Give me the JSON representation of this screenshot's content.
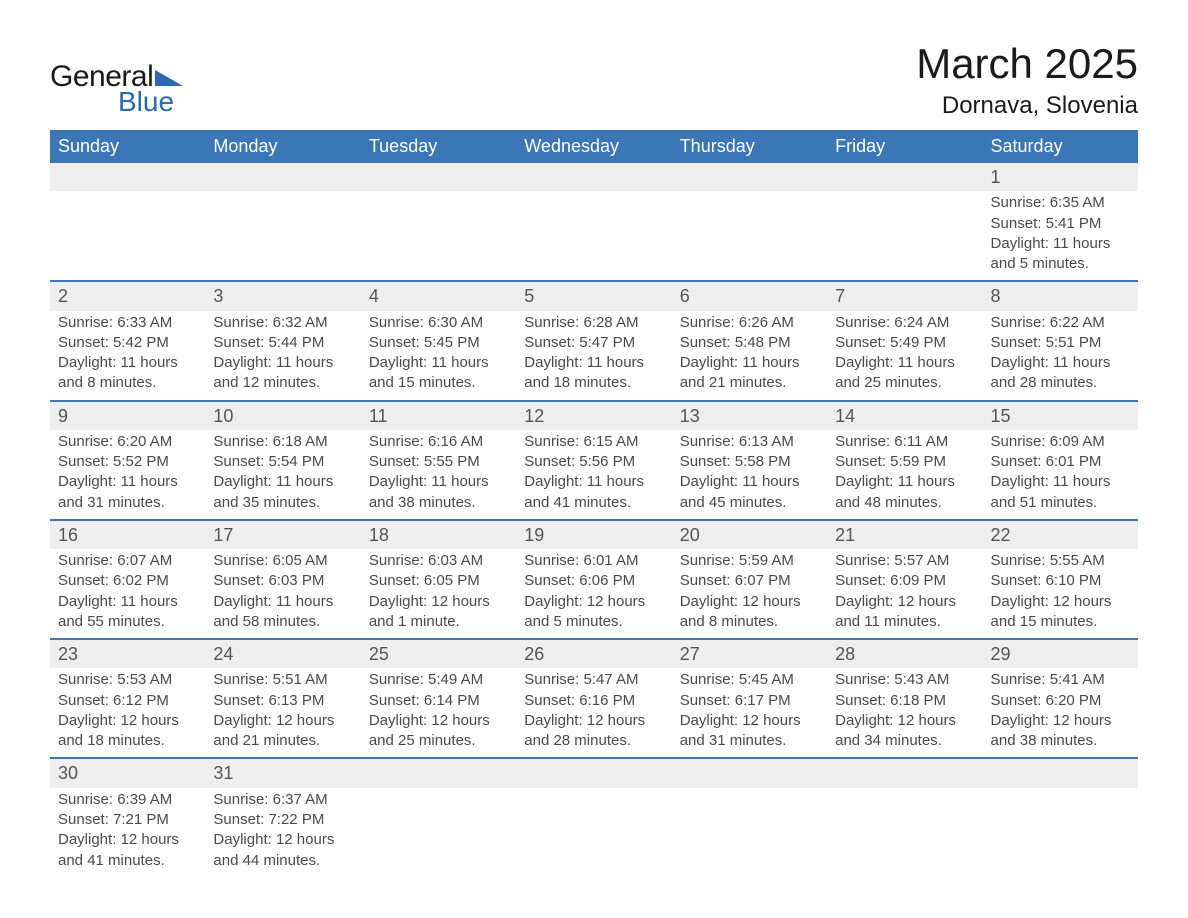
{
  "logo": {
    "line1": "General",
    "line2": "Blue"
  },
  "title": {
    "month_year": "March 2025",
    "location": "Dornava, Slovenia"
  },
  "colors": {
    "header_bg": "#3b76b6",
    "header_text": "#ffffff",
    "daynum_bg": "#eeeeee",
    "row_border": "#3b76b6",
    "text": "#4a4a4a",
    "logo_accent": "#2a6ab0"
  },
  "weekdays": [
    "Sunday",
    "Monday",
    "Tuesday",
    "Wednesday",
    "Thursday",
    "Friday",
    "Saturday"
  ],
  "labels": {
    "sunrise": "Sunrise",
    "sunset": "Sunset",
    "daylight": "Daylight"
  },
  "weeks": [
    [
      null,
      null,
      null,
      null,
      null,
      null,
      {
        "day": "1",
        "sunrise": "6:35 AM",
        "sunset": "5:41 PM",
        "daylight": "11 hours and 5 minutes."
      }
    ],
    [
      {
        "day": "2",
        "sunrise": "6:33 AM",
        "sunset": "5:42 PM",
        "daylight": "11 hours and 8 minutes."
      },
      {
        "day": "3",
        "sunrise": "6:32 AM",
        "sunset": "5:44 PM",
        "daylight": "11 hours and 12 minutes."
      },
      {
        "day": "4",
        "sunrise": "6:30 AM",
        "sunset": "5:45 PM",
        "daylight": "11 hours and 15 minutes."
      },
      {
        "day": "5",
        "sunrise": "6:28 AM",
        "sunset": "5:47 PM",
        "daylight": "11 hours and 18 minutes."
      },
      {
        "day": "6",
        "sunrise": "6:26 AM",
        "sunset": "5:48 PM",
        "daylight": "11 hours and 21 minutes."
      },
      {
        "day": "7",
        "sunrise": "6:24 AM",
        "sunset": "5:49 PM",
        "daylight": "11 hours and 25 minutes."
      },
      {
        "day": "8",
        "sunrise": "6:22 AM",
        "sunset": "5:51 PM",
        "daylight": "11 hours and 28 minutes."
      }
    ],
    [
      {
        "day": "9",
        "sunrise": "6:20 AM",
        "sunset": "5:52 PM",
        "daylight": "11 hours and 31 minutes."
      },
      {
        "day": "10",
        "sunrise": "6:18 AM",
        "sunset": "5:54 PM",
        "daylight": "11 hours and 35 minutes."
      },
      {
        "day": "11",
        "sunrise": "6:16 AM",
        "sunset": "5:55 PM",
        "daylight": "11 hours and 38 minutes."
      },
      {
        "day": "12",
        "sunrise": "6:15 AM",
        "sunset": "5:56 PM",
        "daylight": "11 hours and 41 minutes."
      },
      {
        "day": "13",
        "sunrise": "6:13 AM",
        "sunset": "5:58 PM",
        "daylight": "11 hours and 45 minutes."
      },
      {
        "day": "14",
        "sunrise": "6:11 AM",
        "sunset": "5:59 PM",
        "daylight": "11 hours and 48 minutes."
      },
      {
        "day": "15",
        "sunrise": "6:09 AM",
        "sunset": "6:01 PM",
        "daylight": "11 hours and 51 minutes."
      }
    ],
    [
      {
        "day": "16",
        "sunrise": "6:07 AM",
        "sunset": "6:02 PM",
        "daylight": "11 hours and 55 minutes."
      },
      {
        "day": "17",
        "sunrise": "6:05 AM",
        "sunset": "6:03 PM",
        "daylight": "11 hours and 58 minutes."
      },
      {
        "day": "18",
        "sunrise": "6:03 AM",
        "sunset": "6:05 PM",
        "daylight": "12 hours and 1 minute."
      },
      {
        "day": "19",
        "sunrise": "6:01 AM",
        "sunset": "6:06 PM",
        "daylight": "12 hours and 5 minutes."
      },
      {
        "day": "20",
        "sunrise": "5:59 AM",
        "sunset": "6:07 PM",
        "daylight": "12 hours and 8 minutes."
      },
      {
        "day": "21",
        "sunrise": "5:57 AM",
        "sunset": "6:09 PM",
        "daylight": "12 hours and 11 minutes."
      },
      {
        "day": "22",
        "sunrise": "5:55 AM",
        "sunset": "6:10 PM",
        "daylight": "12 hours and 15 minutes."
      }
    ],
    [
      {
        "day": "23",
        "sunrise": "5:53 AM",
        "sunset": "6:12 PM",
        "daylight": "12 hours and 18 minutes."
      },
      {
        "day": "24",
        "sunrise": "5:51 AM",
        "sunset": "6:13 PM",
        "daylight": "12 hours and 21 minutes."
      },
      {
        "day": "25",
        "sunrise": "5:49 AM",
        "sunset": "6:14 PM",
        "daylight": "12 hours and 25 minutes."
      },
      {
        "day": "26",
        "sunrise": "5:47 AM",
        "sunset": "6:16 PM",
        "daylight": "12 hours and 28 minutes."
      },
      {
        "day": "27",
        "sunrise": "5:45 AM",
        "sunset": "6:17 PM",
        "daylight": "12 hours and 31 minutes."
      },
      {
        "day": "28",
        "sunrise": "5:43 AM",
        "sunset": "6:18 PM",
        "daylight": "12 hours and 34 minutes."
      },
      {
        "day": "29",
        "sunrise": "5:41 AM",
        "sunset": "6:20 PM",
        "daylight": "12 hours and 38 minutes."
      }
    ],
    [
      {
        "day": "30",
        "sunrise": "6:39 AM",
        "sunset": "7:21 PM",
        "daylight": "12 hours and 41 minutes."
      },
      {
        "day": "31",
        "sunrise": "6:37 AM",
        "sunset": "7:22 PM",
        "daylight": "12 hours and 44 minutes."
      },
      null,
      null,
      null,
      null,
      null
    ]
  ]
}
